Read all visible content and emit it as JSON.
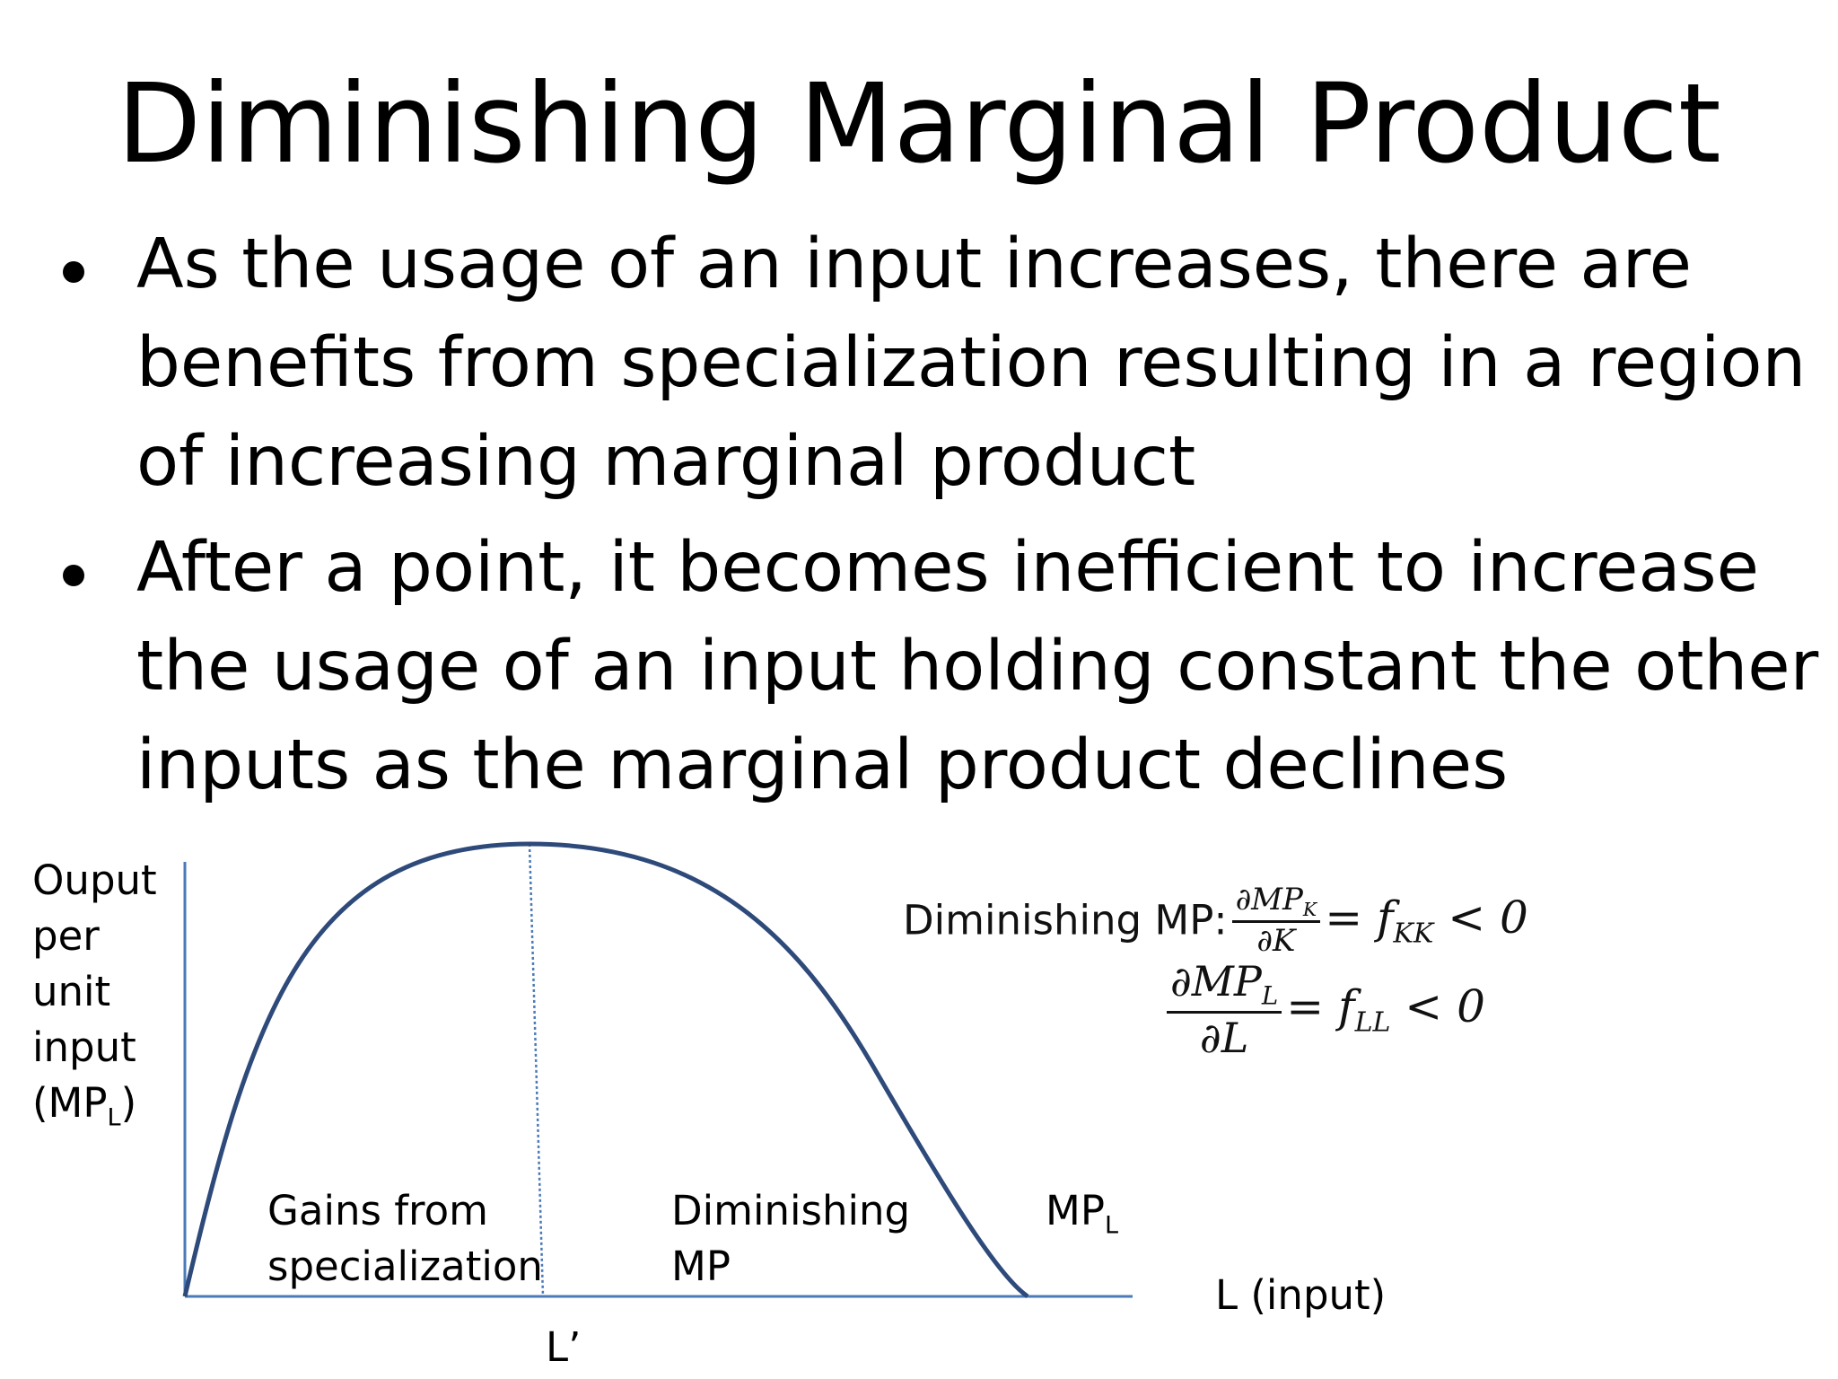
{
  "title": "Diminishing Marginal Product",
  "bullets": [
    "As the usage of an input increases, there are benefits from specialization resulting in a region of increasing marginal product",
    "After a point, it becomes inefficient to increase the usage of an input holding constant the other inputs as the marginal product declines"
  ],
  "diagram": {
    "y_axis_label_lines": [
      "Ouput",
      "per",
      "unit",
      "input"
    ],
    "y_axis_label_symbol": "(MP",
    "y_axis_label_sub": "L",
    "y_axis_label_close": ")",
    "x_axis_label": "L (input)",
    "peak_label": "L’",
    "region_left": [
      "Gains from",
      "specialization"
    ],
    "region_right": [
      "Diminishing",
      "MP"
    ],
    "curve_label": "MP",
    "curve_label_sub": "L",
    "colors": {
      "curve": "#2e4a7a",
      "axes": "#4a7ab8",
      "divider": "#4a7ab8"
    }
  },
  "equations": {
    "prefix": "Diminishing MP:",
    "eq1_num": "∂MP",
    "eq1_num_sub": "K",
    "eq1_den": "∂K",
    "eq1_rhs": "= f",
    "eq1_rhs_sub": "KK",
    "eq1_rhs_tail": " < 0",
    "eq2_num": "∂MP",
    "eq2_num_sub": "L",
    "eq2_den": "∂L",
    "eq2_rhs": "= f",
    "eq2_rhs_sub": "LL",
    "eq2_rhs_tail": " < 0"
  }
}
